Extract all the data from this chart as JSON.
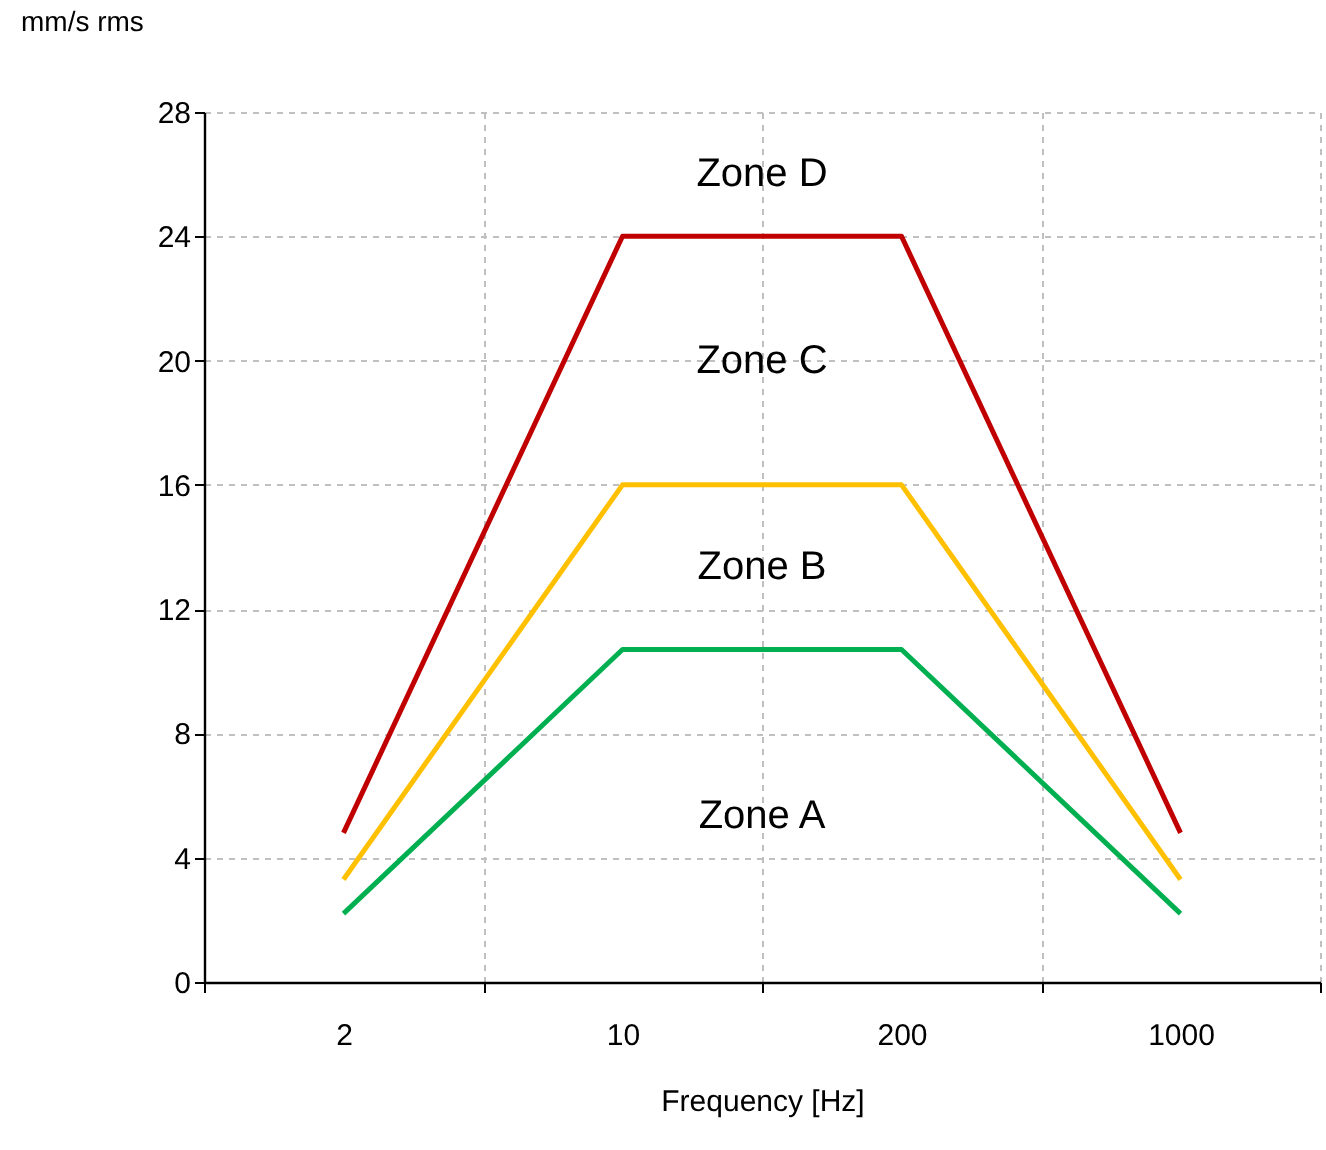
{
  "chart_data": {
    "type": "line",
    "xlabel": "Frequency  [Hz]",
    "ylabel": "mm/s  rms",
    "categories": [
      "2",
      "10",
      "200",
      "1000"
    ],
    "series": [
      {
        "color": "#c00000",
        "values": [
          4.8,
          24,
          24,
          4.8
        ]
      },
      {
        "color": "#ffc000",
        "values": [
          3.3,
          16,
          16,
          3.3
        ]
      },
      {
        "color": "#00b050",
        "values": [
          2.2,
          10.7,
          10.7,
          2.2
        ]
      }
    ],
    "ylim": [
      0,
      28
    ],
    "yticks": [
      0,
      4,
      8,
      12,
      16,
      20,
      24,
      28
    ],
    "grid": true,
    "marker": "none",
    "line_style": "solid",
    "annotations": [
      "Zone D",
      "Zone C",
      "Zone B",
      "Zone A"
    ]
  }
}
